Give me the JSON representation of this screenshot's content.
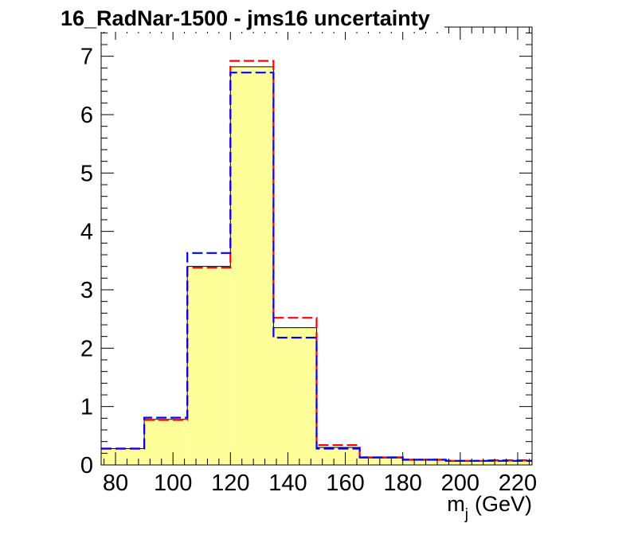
{
  "chart_data": {
    "type": "histogram",
    "title": "16_RadNar-1500 - jms16 uncertainty",
    "xlabel_main": "m",
    "xlabel_sub": "j",
    "xlabel_unit": "(GeV)",
    "ylabel": "",
    "xlim": [
      75,
      225
    ],
    "ylim": [
      0,
      7.5
    ],
    "xticks": [
      80,
      100,
      120,
      140,
      160,
      180,
      200,
      220
    ],
    "yticks": [
      0,
      1,
      2,
      3,
      4,
      5,
      6,
      7
    ],
    "bin_edges": [
      75,
      90,
      105,
      120,
      135,
      150,
      165,
      180,
      195,
      210,
      225
    ],
    "grid": false,
    "series": [
      {
        "style": "filled",
        "color": "#ffff99",
        "edge": "#000000",
        "values": [
          0.28,
          0.78,
          3.4,
          6.82,
          2.35,
          0.3,
          0.12,
          0.08,
          0.07,
          0.07
        ]
      },
      {
        "style": "dashed",
        "color": "#ff0000",
        "values": [
          0.28,
          0.77,
          3.38,
          6.92,
          2.52,
          0.34,
          0.13,
          0.09,
          0.07,
          0.08
        ]
      },
      {
        "style": "dashed",
        "color": "#0000ff",
        "values": [
          0.28,
          0.81,
          3.63,
          6.72,
          2.18,
          0.28,
          0.13,
          0.09,
          0.07,
          0.07
        ]
      }
    ]
  }
}
